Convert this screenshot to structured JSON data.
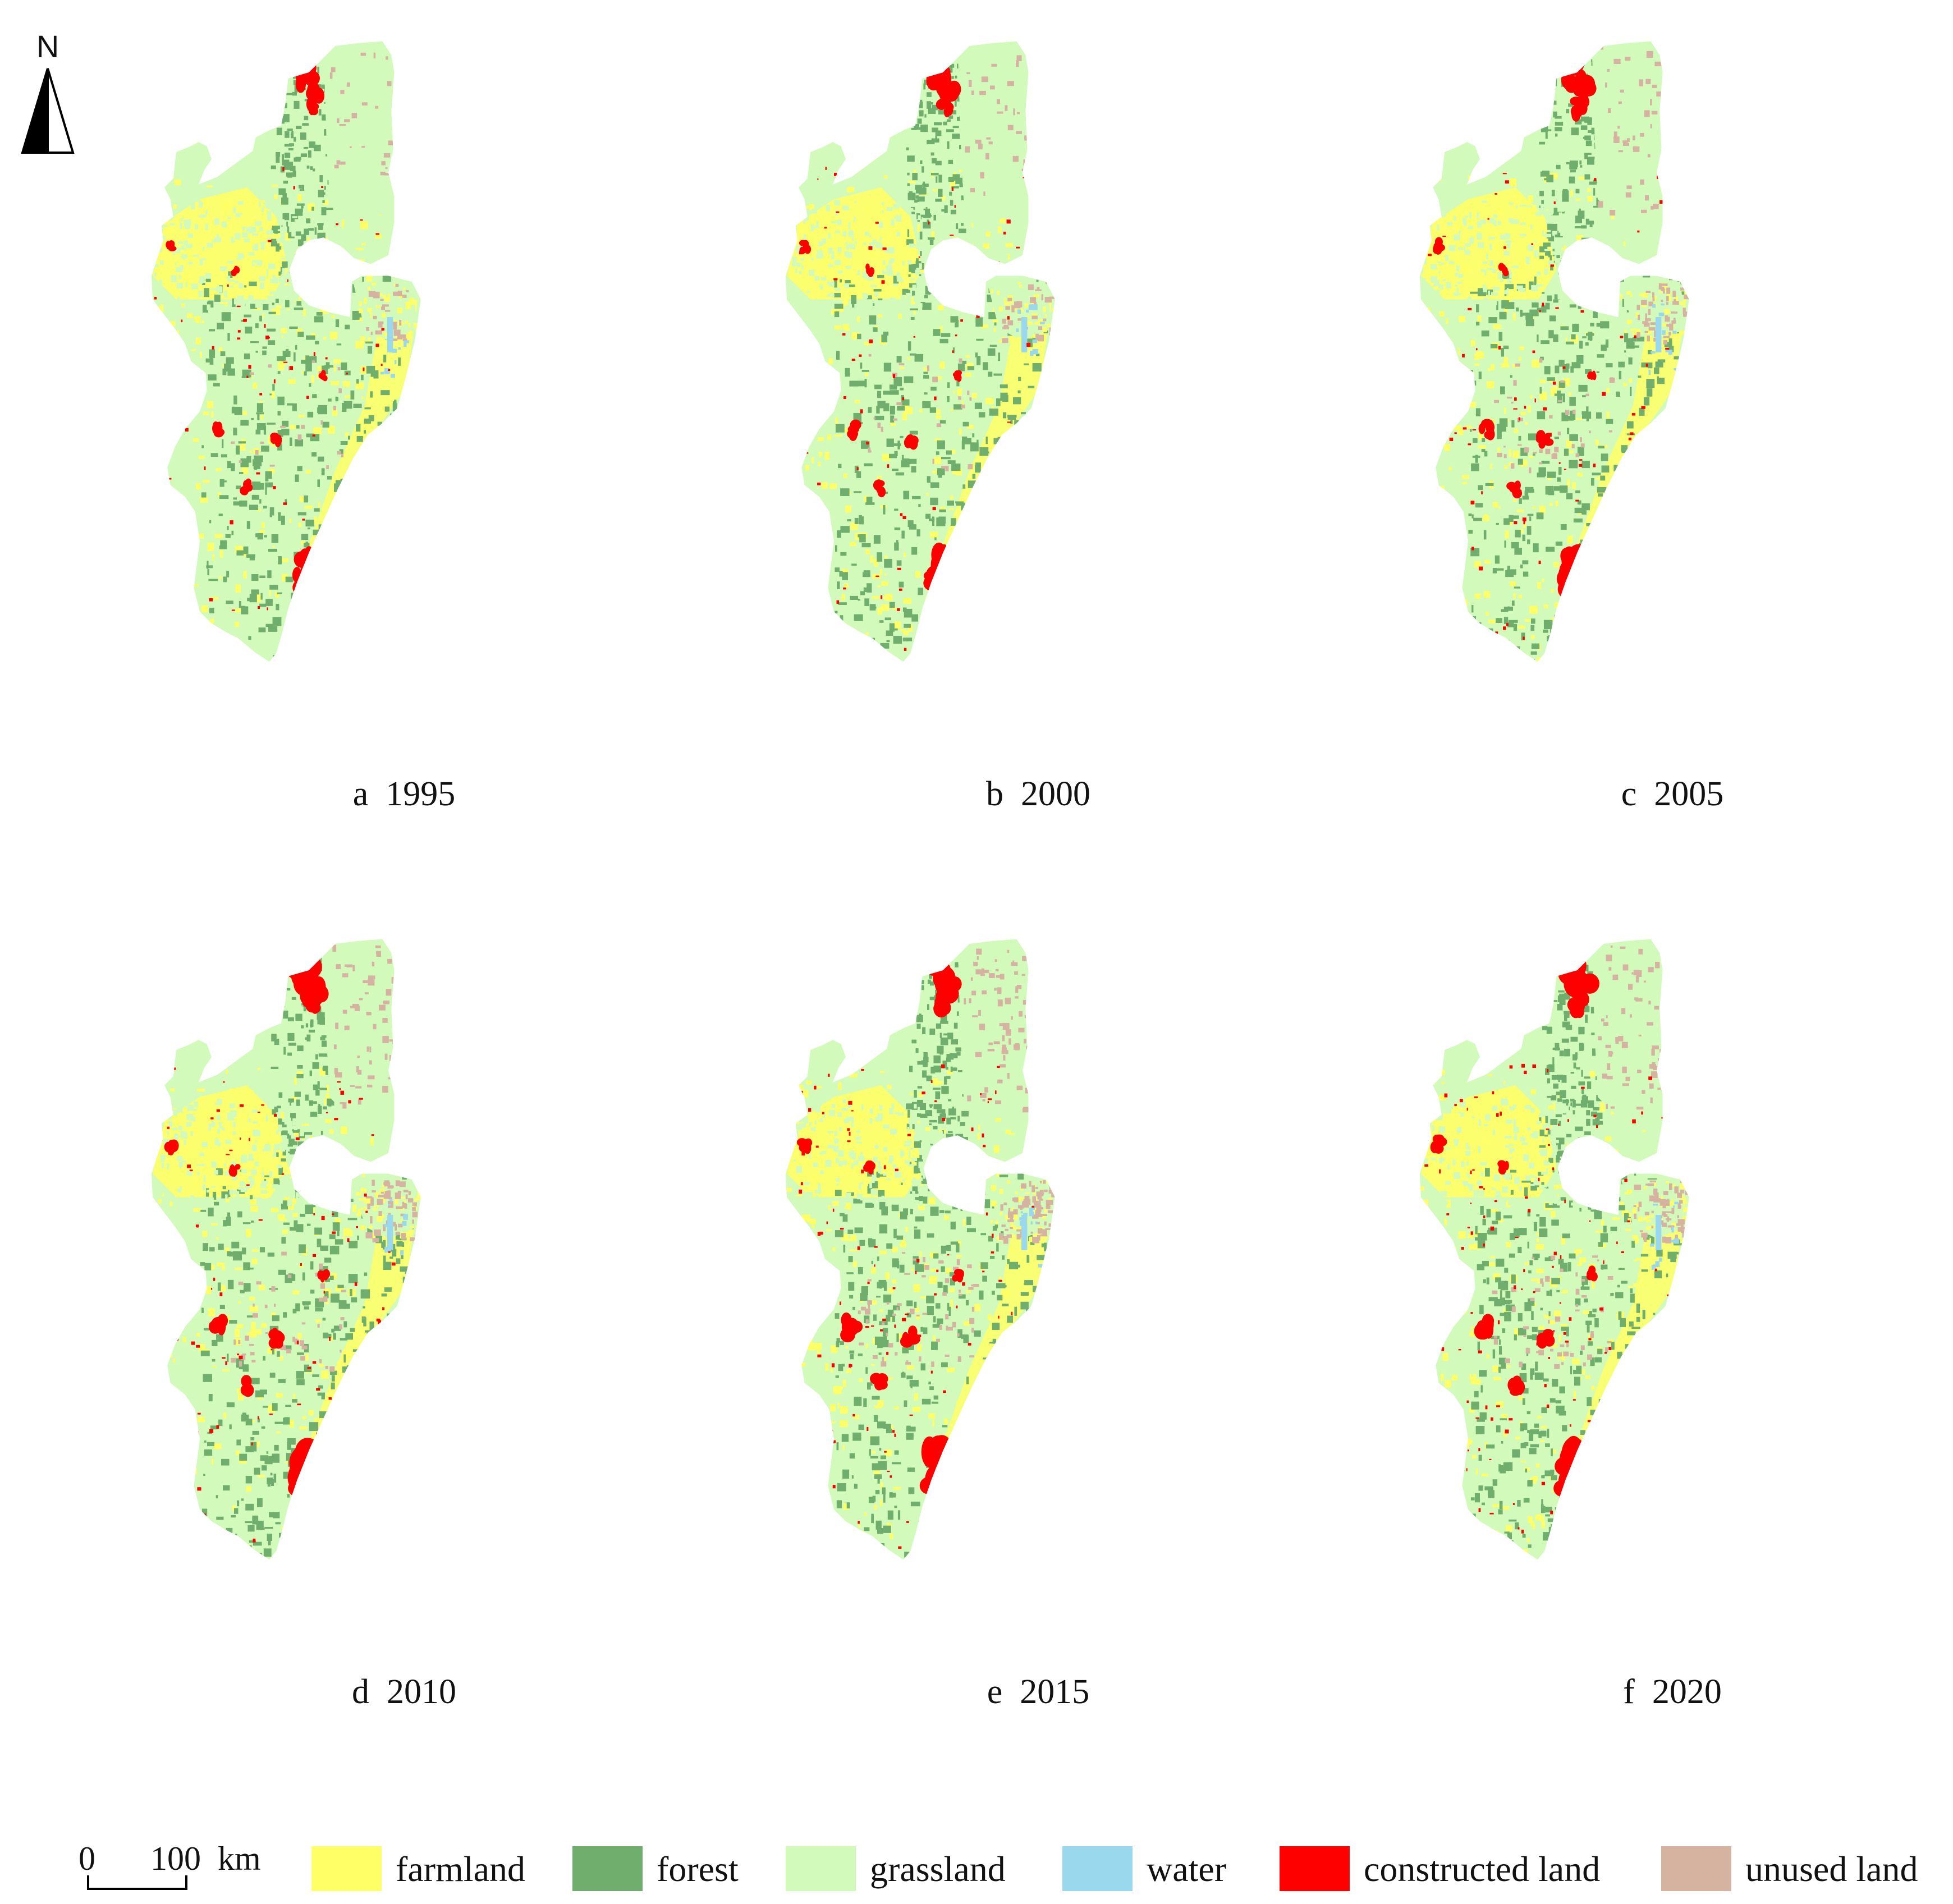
{
  "north_arrow": {
    "letter": "N"
  },
  "panels": [
    {
      "label": "a  1995"
    },
    {
      "label": "b  2000"
    },
    {
      "label": "c  2005"
    },
    {
      "label": "d  2010"
    },
    {
      "label": "e  2015"
    },
    {
      "label": "f  2020"
    }
  ],
  "scale_bar": {
    "zero": "0",
    "value": "100",
    "unit": "km"
  },
  "legend": [
    {
      "label": "farmland",
      "color": "#FFFF66"
    },
    {
      "label": "forest",
      "color": "#70AE6E"
    },
    {
      "label": "grassland",
      "color": "#D2FBBB"
    },
    {
      "label": "water",
      "color": "#9AD8EE"
    },
    {
      "label": "constructed land",
      "color": "#FF0000"
    },
    {
      "label": "unused land",
      "color": "#D6B2A0"
    }
  ]
}
